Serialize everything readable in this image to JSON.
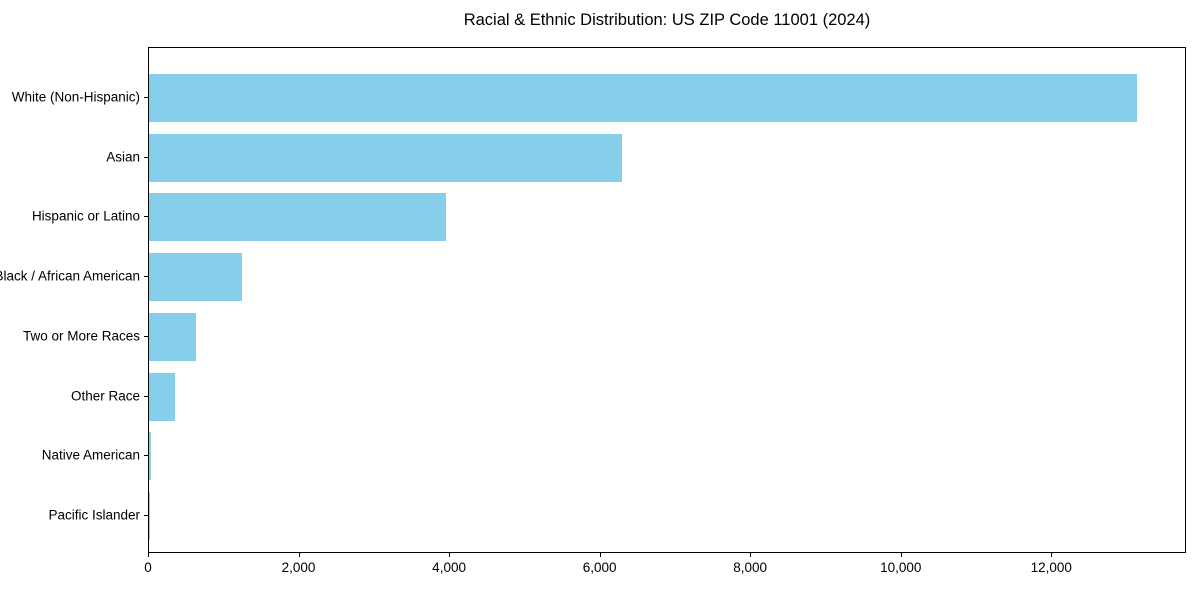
{
  "chart_data": {
    "type": "bar",
    "orientation": "horizontal",
    "title": "Racial & Ethnic Distribution: US ZIP Code 11001 (2024)",
    "categories": [
      "White (Non-Hispanic)",
      "Asian",
      "Hispanic or Latino",
      "Black / African American",
      "Two or More Races",
      "Other Race",
      "Native American",
      "Pacific Islander"
    ],
    "values": [
      13130,
      6290,
      3945,
      1230,
      620,
      345,
      20,
      5
    ],
    "xlabel": "",
    "ylabel": "",
    "xlim": [
      0,
      13790
    ],
    "xticks": [
      0,
      2000,
      4000,
      6000,
      8000,
      10000,
      12000
    ],
    "xtick_labels": [
      "0",
      "2,000",
      "4,000",
      "6,000",
      "8,000",
      "10,000",
      "12,000"
    ],
    "bar_color": "#87CEEB",
    "axis_color": "#000000",
    "grid": false,
    "legend": null
  }
}
